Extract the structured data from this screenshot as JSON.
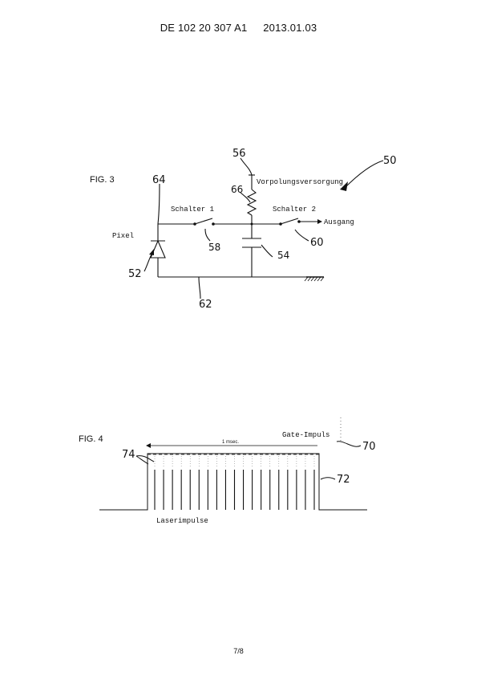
{
  "header": {
    "publication_number": "DE 102 20 307 A1",
    "publication_date": "2013.01.03"
  },
  "fig3": {
    "label": "FIG. 3",
    "texts": {
      "pixel": "Pixel",
      "switch1": "Schalter 1",
      "switch2": "Schalter 2",
      "bias_supply": "Vorpolungsversorgung",
      "output": "Ausgang"
    },
    "refs": {
      "r50": "50",
      "r52": "52",
      "r54": "54",
      "r56": "56",
      "r58": "58",
      "r60": "60",
      "r62": "62",
      "r64": "64",
      "r66": "66"
    }
  },
  "fig4": {
    "label": "FIG. 4",
    "texts": {
      "duration": "1 msec.",
      "gate_pulse": "Gate-Impuls",
      "laser_pulses": "Laserimpulse"
    },
    "refs": {
      "r70": "70",
      "r72": "72",
      "r74": "74"
    },
    "laser_pulse_count": 19
  },
  "footer": {
    "page": "7/8"
  }
}
